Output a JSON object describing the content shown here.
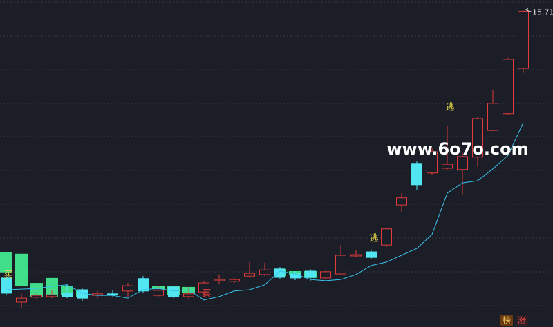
{
  "chart_data": {
    "type": "candlestick",
    "categories": [
      null,
      null,
      null,
      null,
      null,
      null,
      null,
      null,
      null,
      null,
      null,
      null,
      null,
      null,
      null,
      null,
      null,
      null,
      null,
      null,
      null,
      null,
      null,
      null,
      null,
      null,
      null,
      null,
      null,
      null,
      null,
      null,
      null,
      null,
      null
    ],
    "open": [
      7.08,
      6.3,
      6.46,
      6.48,
      6.59,
      6.7,
      6.52,
      6.57,
      6.66,
      7.06,
      6.52,
      6.79,
      6.48,
      6.63,
      6.99,
      6.97,
      7.14,
      7.19,
      7.37,
      7.21,
      7.3,
      7.08,
      7.21,
      7.79,
      7.92,
      8.14,
      9.43,
      10.77,
      10.46,
      10.61,
      10.57,
      10.97,
      11.83,
      12.37,
      13.83
    ],
    "high": [
      7.14,
      6.57,
      6.61,
      6.7,
      6.88,
      6.74,
      6.66,
      6.7,
      6.92,
      7.14,
      6.83,
      6.83,
      6.79,
      6.97,
      7.19,
      7.08,
      7.59,
      7.57,
      7.43,
      7.3,
      7.37,
      7.32,
      8.14,
      7.97,
      7.99,
      8.7,
      9.81,
      10.83,
      11.26,
      11.97,
      11.1,
      12.26,
      13.14,
      14.17,
      15.71
    ],
    "low": [
      6.52,
      6.12,
      6.39,
      6.43,
      6.43,
      6.34,
      6.43,
      6.48,
      6.48,
      6.61,
      6.48,
      6.43,
      6.39,
      6.48,
      6.88,
      6.92,
      7.1,
      7.14,
      7.06,
      7.01,
      6.97,
      7.03,
      7.17,
      7.74,
      7.7,
      8.08,
      9.21,
      9.92,
      10.41,
      10.57,
      9.77,
      10.66,
      11.81,
      12.34,
      13.68
    ],
    "close": [
      6.59,
      6.43,
      6.52,
      6.54,
      6.48,
      6.43,
      6.57,
      6.57,
      6.83,
      6.66,
      6.68,
      6.48,
      6.57,
      6.92,
      7.03,
      7.03,
      7.23,
      7.34,
      7.1,
      7.08,
      7.1,
      7.28,
      7.81,
      7.83,
      7.74,
      8.66,
      9.66,
      10.08,
      11.14,
      10.74,
      10.99,
      12.21,
      12.7,
      14.12,
      15.66
    ],
    "up_color": "#e23b3b",
    "down_color": "#52e6f2",
    "flat_color": "#52e6f2",
    "ylim": [
      5.5,
      16.03
    ],
    "boxes": {
      "color": "#40dd8a",
      "bottom": [
        7.26,
        6.81,
        6.48,
        6.48,
        6.52,
        6.48,
        null,
        null,
        null,
        null,
        6.72,
        6.52,
        6.61,
        null,
        null,
        null,
        null,
        null,
        7.14,
        7.19,
        7.08,
        null,
        null,
        null,
        null,
        null,
        null,
        null,
        null,
        null,
        null,
        null,
        null,
        null,
        null
      ],
      "top": [
        7.92,
        7.86,
        6.92,
        7.08,
        6.81,
        6.7,
        null,
        null,
        null,
        null,
        6.83,
        6.81,
        6.79,
        null,
        null,
        null,
        null,
        null,
        7.37,
        7.3,
        7.3,
        null,
        null,
        null,
        null,
        null,
        null,
        null,
        null,
        null,
        null,
        null,
        null,
        null,
        null
      ]
    },
    "ma": {
      "color": "#39c4ef",
      "values": [
        6.7,
        6.72,
        6.74,
        6.81,
        6.86,
        6.59,
        6.52,
        6.52,
        6.43,
        6.7,
        6.74,
        6.66,
        6.7,
        6.37,
        6.48,
        6.66,
        6.7,
        6.86,
        7.3,
        7.21,
        7.03,
        6.99,
        7.03,
        7.19,
        7.48,
        7.59,
        7.81,
        8.03,
        8.48,
        9.81,
        10.14,
        10.21,
        10.59,
        11.03,
        12.08
      ]
    },
    "annotations": [
      {
        "text": "买",
        "color": "#e8d84a"
      },
      {
        "text": "买",
        "color": "#e23b3b"
      },
      {
        "text": "逃",
        "color": "#e8d84a"
      },
      {
        "text": "逃",
        "color": "#e8d84a"
      }
    ],
    "watermark": "www.6o7o.com",
    "badges": [
      {
        "text": "榜",
        "color": "#f2c65a",
        "background": "#6a3a12"
      },
      {
        "text": "涨",
        "color": "#f04848",
        "background": "#2c1e22"
      }
    ]
  }
}
